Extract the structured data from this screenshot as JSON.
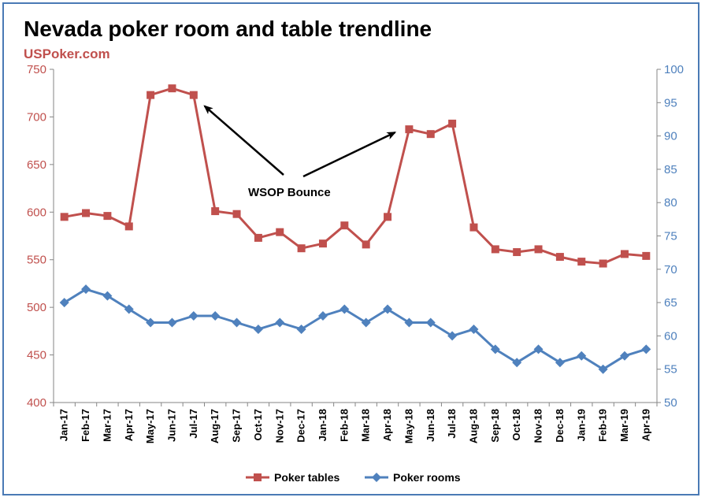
{
  "chart_data": {
    "type": "line",
    "title": "Nevada poker room and table trendline",
    "subtitle": "USPoker.com",
    "categories": [
      "Jan-17",
      "Feb-17",
      "Mar-17",
      "Apr-17",
      "May-17",
      "Jun-17",
      "Jul-17",
      "Aug-17",
      "Sep-17",
      "Oct-17",
      "Nov-17",
      "Dec-17",
      "Jan-18",
      "Feb-18",
      "Mar-18",
      "Apr-18",
      "May-18",
      "Jun-18",
      "Jul-18",
      "Aug-18",
      "Sep-18",
      "Oct-18",
      "Nov-18",
      "Dec-18",
      "Jan-19",
      "Feb-19",
      "Mar-19",
      "Apr-19"
    ],
    "y_left": {
      "min": 400,
      "max": 750,
      "step": 50,
      "ticks": [
        "400",
        "450",
        "500",
        "550",
        "600",
        "650",
        "700",
        "750"
      ]
    },
    "y_right": {
      "min": 50,
      "max": 100,
      "step": 5,
      "ticks": [
        "50",
        "55",
        "60",
        "65",
        "70",
        "75",
        "80",
        "85",
        "90",
        "95",
        "100"
      ]
    },
    "series": [
      {
        "name": "Poker tables",
        "axis": "left",
        "color": "#c0504d",
        "marker": "square",
        "values": [
          595,
          599,
          596,
          585,
          723,
          730,
          723,
          601,
          598,
          573,
          579,
          562,
          567,
          586,
          566,
          595,
          687,
          682,
          693,
          584,
          561,
          558,
          561,
          553,
          548,
          546,
          556,
          554
        ]
      },
      {
        "name": "Poker rooms",
        "axis": "right",
        "color": "#4f81bd",
        "marker": "diamond",
        "values": [
          65,
          67,
          66,
          64,
          62,
          62,
          63,
          63,
          62,
          61,
          62,
          61,
          63,
          64,
          62,
          64,
          62,
          62,
          60,
          61,
          58,
          56,
          58,
          56,
          57,
          55,
          57,
          58
        ]
      }
    ],
    "annotation": {
      "text": "WSOP Bounce",
      "arrow_targets": [
        6,
        16
      ]
    },
    "legend_position": "bottom",
    "grid": false
  }
}
